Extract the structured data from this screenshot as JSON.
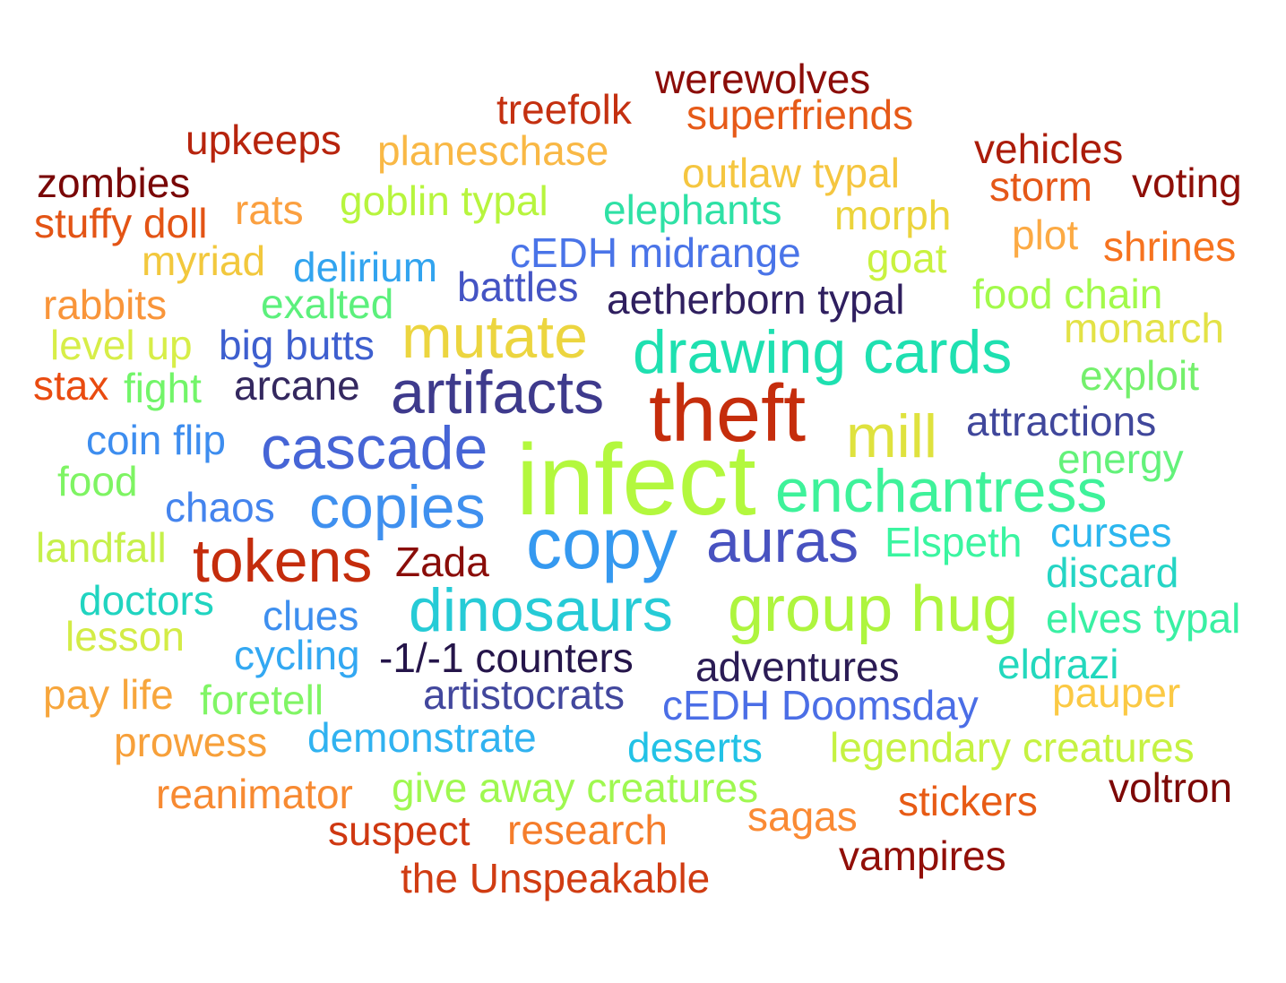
{
  "words": [
    {
      "text": "werewolves",
      "color": "#8b0d09"
    },
    {
      "text": "treefolk",
      "color": "#c43010"
    },
    {
      "text": "superfriends",
      "color": "#e65a18"
    },
    {
      "text": "upkeeps",
      "color": "#b7240d"
    },
    {
      "text": "planeschase",
      "color": "#f9b845"
    },
    {
      "text": "vehicles",
      "color": "#ab1c0a"
    },
    {
      "text": "zombies",
      "color": "#790707"
    },
    {
      "text": "outlaw typal",
      "color": "#f5c640"
    },
    {
      "text": "voting",
      "color": "#8e0f08"
    },
    {
      "text": "storm",
      "color": "#e55818"
    },
    {
      "text": "rats",
      "color": "#fba040"
    },
    {
      "text": "goblin typal",
      "color": "#b7f53e"
    },
    {
      "text": "elephants",
      "color": "#2ee1a5"
    },
    {
      "text": "morph",
      "color": "#ecd43c"
    },
    {
      "text": "stuffy doll",
      "color": "#e35415"
    },
    {
      "text": "plot",
      "color": "#fcaa44"
    },
    {
      "text": "shrines",
      "color": "#f6731f"
    },
    {
      "text": "cEDH midrange",
      "color": "#4a74e8"
    },
    {
      "text": "myriad",
      "color": "#f2c83d"
    },
    {
      "text": "goat",
      "color": "#c9f23f"
    },
    {
      "text": "delirium",
      "color": "#32a4ef"
    },
    {
      "text": "battles",
      "color": "#4454c4"
    },
    {
      "text": "food chain",
      "color": "#a2fa4b"
    },
    {
      "text": "rabbits",
      "color": "#f9953a"
    },
    {
      "text": "exalted",
      "color": "#5cf07c"
    },
    {
      "text": "aetherborn typal",
      "color": "#2f1f5f"
    },
    {
      "text": "monarch",
      "color": "#e3e246"
    },
    {
      "text": "mutate",
      "color": "#ecd53f"
    },
    {
      "text": "level up",
      "color": "#d7ee48"
    },
    {
      "text": "big butts",
      "color": "#3e5fcf"
    },
    {
      "text": "drawing cards",
      "color": "#1ee0b0"
    },
    {
      "text": "stax",
      "color": "#e94b10"
    },
    {
      "text": "fight",
      "color": "#72f569"
    },
    {
      "text": "arcane",
      "color": "#34285f"
    },
    {
      "text": "artifacts",
      "color": "#3e3a8c"
    },
    {
      "text": "exploit",
      "color": "#74f06c"
    },
    {
      "text": "theft",
      "color": "#c52d0c"
    },
    {
      "text": "attractions",
      "color": "#40479b"
    },
    {
      "text": "mill",
      "color": "#dfe23e"
    },
    {
      "text": "coin flip",
      "color": "#3d8def"
    },
    {
      "text": "cascade",
      "color": "#4665d6"
    },
    {
      "text": "energy",
      "color": "#63f27a"
    },
    {
      "text": "infect",
      "color": "#b3f83e"
    },
    {
      "text": "food",
      "color": "#7ef463"
    },
    {
      "text": "enchantress",
      "color": "#3ef29a"
    },
    {
      "text": "chaos",
      "color": "#4484ee"
    },
    {
      "text": "copies",
      "color": "#3f90ef"
    },
    {
      "text": "curses",
      "color": "#2bb6ee"
    },
    {
      "text": "landfall",
      "color": "#c6f04a"
    },
    {
      "text": "copy",
      "color": "#3599f0"
    },
    {
      "text": "auras",
      "color": "#4852c0"
    },
    {
      "text": "Elspeth",
      "color": "#3af5a0"
    },
    {
      "text": "tokens",
      "color": "#c42c0c"
    },
    {
      "text": "Zada",
      "color": "#8a0d09"
    },
    {
      "text": "discard",
      "color": "#25d5c4"
    },
    {
      "text": "doctors",
      "color": "#20d4c0"
    },
    {
      "text": "group hug",
      "color": "#aef53e"
    },
    {
      "text": "dinosaurs",
      "color": "#26cbd6"
    },
    {
      "text": "clues",
      "color": "#3e8fef"
    },
    {
      "text": "elves typal",
      "color": "#39f0a3"
    },
    {
      "text": "lesson",
      "color": "#d3ec46"
    },
    {
      "text": "cycling",
      "color": "#33a8f2"
    },
    {
      "text": "-1/-1 counters",
      "color": "#25154a"
    },
    {
      "text": "eldrazi",
      "color": "#23d8bd"
    },
    {
      "text": "adventures",
      "color": "#2b1c55"
    },
    {
      "text": "pay life",
      "color": "#f7a63c"
    },
    {
      "text": "foretell",
      "color": "#80f565"
    },
    {
      "text": "artistocrats",
      "color": "#42479d"
    },
    {
      "text": "pauper",
      "color": "#fbc944"
    },
    {
      "text": "cEDH Doomsday",
      "color": "#4b6ee6"
    },
    {
      "text": "prowess",
      "color": "#f7a03a"
    },
    {
      "text": "demonstrate",
      "color": "#30b2f0"
    },
    {
      "text": "deserts",
      "color": "#22c2e6"
    },
    {
      "text": "legendary creatures",
      "color": "#c5f242"
    },
    {
      "text": "reanimator",
      "color": "#f78a32"
    },
    {
      "text": "give away creatures",
      "color": "#9ff850"
    },
    {
      "text": "voltron",
      "color": "#7d0806"
    },
    {
      "text": "stickers",
      "color": "#e75b15"
    },
    {
      "text": "sagas",
      "color": "#fa8a34"
    },
    {
      "text": "suspect",
      "color": "#cf3811"
    },
    {
      "text": "research",
      "color": "#f57d2b"
    },
    {
      "text": "vampires",
      "color": "#910f08"
    },
    {
      "text": "the Unspeakable",
      "color": "#d03c12"
    }
  ]
}
